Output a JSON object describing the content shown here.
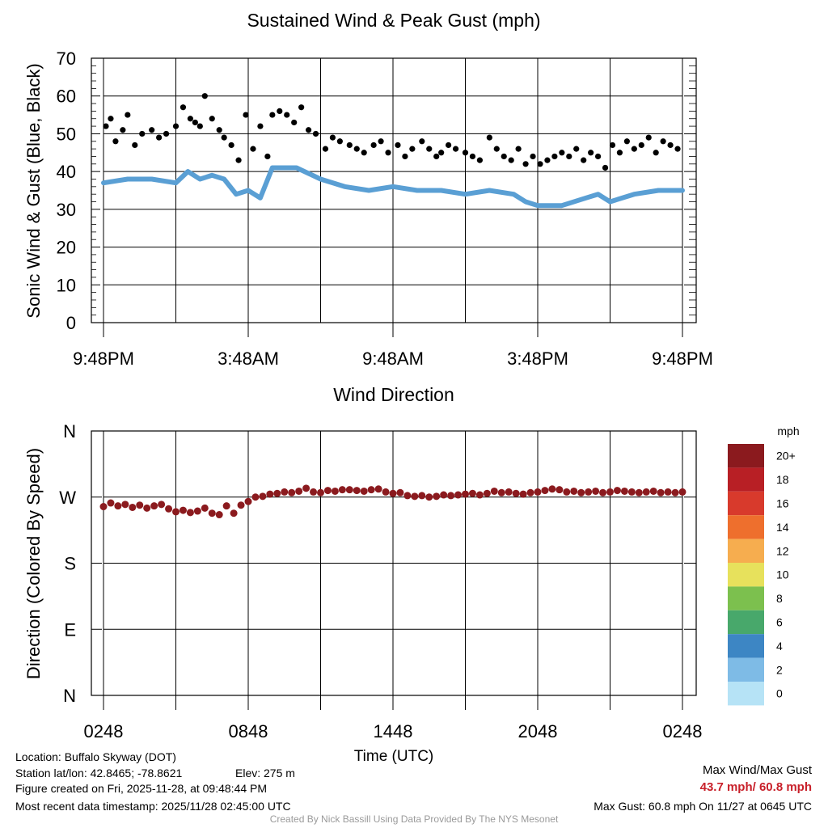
{
  "chart_data": [
    {
      "type": "line",
      "title": "Sustained Wind & Peak Gust (mph)",
      "ylabel": "Sonic Wind & Gust (Blue, Black)",
      "xlabel": "",
      "ylim": [
        0,
        70
      ],
      "y_ticks": [
        0,
        10,
        20,
        30,
        40,
        50,
        60,
        70
      ],
      "x_tick_labels": [
        "9:48PM",
        "3:48AM",
        "9:48AM",
        "3:48PM",
        "9:48PM"
      ],
      "x_hours_range": [
        0,
        24
      ],
      "grid": true,
      "series": [
        {
          "name": "Sustained Wind (Blue)",
          "color": "#5a9fd4",
          "style": "line",
          "x_hours": [
            0,
            1,
            2,
            3,
            3.5,
            4,
            4.5,
            5,
            5.5,
            6,
            6.5,
            7,
            8,
            9,
            10,
            11,
            12,
            13,
            14,
            15,
            16,
            17,
            17.5,
            18,
            19,
            20,
            20.5,
            21,
            22,
            23,
            24
          ],
          "values": [
            37,
            38,
            38,
            37,
            40,
            38,
            39,
            38,
            34,
            35,
            33,
            41,
            41,
            38,
            36,
            35,
            36,
            35,
            35,
            34,
            35,
            34,
            32,
            31,
            31,
            33,
            34,
            32,
            34,
            35,
            35
          ]
        },
        {
          "name": "Peak Gust (Black)",
          "color": "#000000",
          "style": "points",
          "x_hours": [
            0.1,
            0.3,
            0.5,
            0.8,
            1.0,
            1.3,
            1.6,
            2.0,
            2.3,
            2.6,
            3.0,
            3.3,
            3.6,
            3.8,
            4.0,
            4.2,
            4.5,
            4.8,
            5.0,
            5.3,
            5.6,
            5.9,
            6.2,
            6.5,
            6.8,
            7.0,
            7.3,
            7.6,
            7.9,
            8.2,
            8.5,
            8.8,
            9.2,
            9.5,
            9.8,
            10.2,
            10.5,
            10.8,
            11.2,
            11.5,
            11.8,
            12.2,
            12.5,
            12.8,
            13.2,
            13.5,
            13.8,
            14.0,
            14.3,
            14.6,
            15.0,
            15.3,
            15.6,
            16.0,
            16.3,
            16.6,
            16.9,
            17.2,
            17.5,
            17.8,
            18.1,
            18.4,
            18.7,
            19.0,
            19.3,
            19.6,
            19.9,
            20.2,
            20.5,
            20.8,
            21.1,
            21.4,
            21.7,
            22.0,
            22.3,
            22.6,
            22.9,
            23.2,
            23.5,
            23.8
          ],
          "values": [
            52,
            54,
            48,
            51,
            55,
            47,
            50,
            51,
            49,
            50,
            52,
            57,
            54,
            53,
            52,
            60,
            54,
            51,
            49,
            47,
            43,
            55,
            46,
            52,
            44,
            55,
            56,
            55,
            53,
            57,
            51,
            50,
            46,
            49,
            48,
            47,
            46,
            45,
            47,
            48,
            45,
            47,
            44,
            46,
            48,
            46,
            44,
            45,
            47,
            46,
            45,
            44,
            43,
            49,
            46,
            44,
            43,
            46,
            42,
            44,
            42,
            43,
            44,
            45,
            44,
            46,
            43,
            45,
            44,
            41,
            47,
            45,
            48,
            46,
            47,
            49,
            45,
            48,
            47,
            46
          ]
        }
      ]
    },
    {
      "type": "scatter",
      "title": "Wind Direction",
      "ylabel": "Direction (Colored By Speed)",
      "xlabel": "Time (UTC)",
      "ylim": [
        0,
        360
      ],
      "y_ticks": [
        0,
        90,
        180,
        270,
        360
      ],
      "y_tick_labels": [
        "N",
        "E",
        "S",
        "W",
        "N"
      ],
      "x_tick_labels": [
        "0248",
        "0848",
        "1448",
        "2048",
        "0248"
      ],
      "x_hours_range": [
        0,
        24
      ],
      "grid": true,
      "series": [
        {
          "name": "Direction",
          "color": "#8b1a1e",
          "x_hours": [
            0.0,
            0.3,
            0.6,
            0.9,
            1.2,
            1.5,
            1.8,
            2.1,
            2.4,
            2.7,
            3.0,
            3.3,
            3.6,
            3.9,
            4.2,
            4.5,
            4.8,
            5.1,
            5.4,
            5.7,
            6.0,
            6.3,
            6.6,
            6.9,
            7.2,
            7.5,
            7.8,
            8.1,
            8.4,
            8.7,
            9.0,
            9.3,
            9.6,
            9.9,
            10.2,
            10.5,
            10.8,
            11.1,
            11.4,
            11.7,
            12.0,
            12.3,
            12.6,
            12.9,
            13.2,
            13.5,
            13.8,
            14.1,
            14.4,
            14.7,
            15.0,
            15.3,
            15.6,
            15.9,
            16.2,
            16.5,
            16.8,
            17.1,
            17.4,
            17.7,
            18.0,
            18.3,
            18.6,
            18.9,
            19.2,
            19.5,
            19.8,
            20.1,
            20.4,
            20.7,
            21.0,
            21.3,
            21.6,
            21.9,
            22.2,
            22.5,
            22.8,
            23.1,
            23.4,
            23.7,
            24.0
          ],
          "values": [
            257,
            262,
            258,
            260,
            256,
            259,
            255,
            258,
            260,
            254,
            250,
            252,
            249,
            251,
            255,
            248,
            246,
            258,
            248,
            259,
            264,
            270,
            271,
            274,
            275,
            277,
            276,
            278,
            282,
            277,
            276,
            279,
            278,
            280,
            280,
            279,
            278,
            280,
            281,
            277,
            275,
            276,
            272,
            271,
            272,
            270,
            271,
            273,
            272,
            273,
            274,
            275,
            273,
            275,
            278,
            276,
            277,
            275,
            274,
            276,
            277,
            279,
            281,
            280,
            277,
            278,
            276,
            277,
            278,
            276,
            277,
            279,
            278,
            277,
            276,
            277,
            278,
            276,
            277,
            276,
            277
          ]
        }
      ],
      "colorbar": {
        "title": "mph",
        "labels": [
          "20+",
          "18",
          "16",
          "14",
          "12",
          "10",
          "8",
          "6",
          "4",
          "2",
          "0"
        ],
        "colors": [
          "#8b1a1e",
          "#b81f25",
          "#d83a2c",
          "#ee6f2d",
          "#f6ad4f",
          "#e7e15c",
          "#7cc04e",
          "#48a86b",
          "#3d86c4",
          "#7ebbe6",
          "#b6e3f6"
        ]
      }
    }
  ],
  "footer": {
    "location": "Location: Buffalo Skyway (DOT)",
    "station": "Station lat/lon: 42.8465; -78.8621",
    "elev": "Elev: 275 m",
    "created": "Figure created on Fri, 2025-11-28, at 09:48:44 PM",
    "recent": "Most recent data timestamp: 2025/11/28 02:45:00 UTC",
    "max_title": "Max Wind/Max Gust",
    "max_values": "43.7 mph/ 60.8 mph",
    "max_gust": "Max Gust: 60.8 mph On 11/27 at 0645 UTC",
    "credit": "Created By Nick Bassill Using Data Provided By The NYS Mesonet"
  }
}
